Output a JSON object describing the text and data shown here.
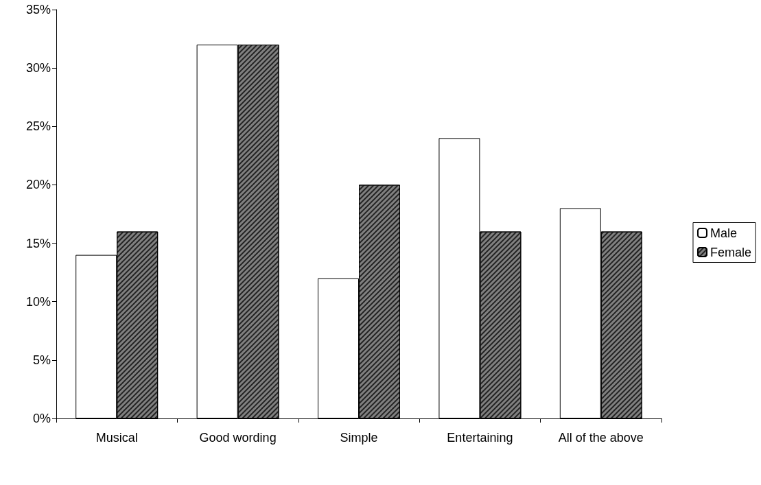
{
  "chart_data": {
    "type": "bar",
    "categories": [
      "Musical",
      "Good wording",
      "Simple",
      "Entertaining",
      "All of the above"
    ],
    "series": [
      {
        "name": "Male",
        "color": "#ffffff",
        "values": [
          14,
          32,
          12,
          24,
          18
        ]
      },
      {
        "name": "Female",
        "color": "#808080",
        "values": [
          16,
          32,
          20,
          16,
          16
        ]
      }
    ],
    "ylim": [
      0,
      35
    ],
    "yticks": [
      {
        "value": 0,
        "label": "0%"
      },
      {
        "value": 5,
        "label": "5%"
      },
      {
        "value": 10,
        "label": "10%"
      },
      {
        "value": 15,
        "label": "15%"
      },
      {
        "value": 20,
        "label": "20%"
      },
      {
        "value": 25,
        "label": "25%"
      },
      {
        "value": 30,
        "label": "30%"
      },
      {
        "value": 35,
        "label": "35%"
      }
    ],
    "grid": false,
    "legend": "right"
  }
}
